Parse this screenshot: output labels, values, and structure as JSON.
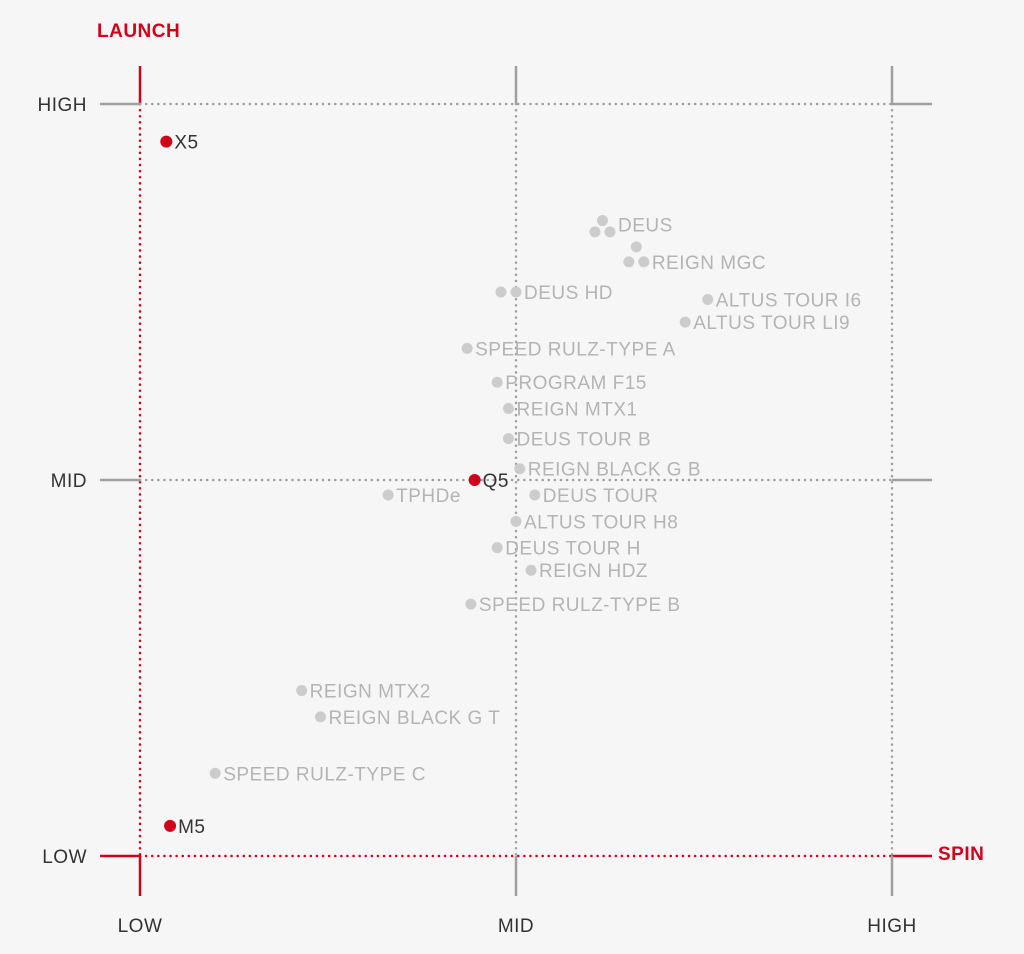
{
  "chart_data": {
    "type": "scatter",
    "title": "",
    "ylabel": "LAUNCH",
    "xlabel": "SPIN",
    "x_ticks": [
      "LOW",
      "MID",
      "HIGH"
    ],
    "y_ticks": [
      "LOW",
      "MID",
      "HIGH"
    ],
    "xlim": [
      0,
      2
    ],
    "ylim": [
      0,
      2
    ],
    "grid": true,
    "colors": {
      "accent": "#d0021b",
      "muted_point": "#cccccc",
      "muted_label": "#b4b4b4",
      "grid": "#a0a0a0",
      "text": "#333333",
      "background": "#f6f6f6"
    },
    "highlighted": [
      {
        "label": "X5",
        "x": 0.07,
        "y": 1.9
      },
      {
        "label": "Q5",
        "x": 0.89,
        "y": 1.0
      },
      {
        "label": "M5",
        "x": 0.08,
        "y": 0.08
      }
    ],
    "points": [
      {
        "label": "DEUS",
        "x": 1.23,
        "y": 1.68,
        "cluster": [
          [
            1.23,
            1.69
          ],
          [
            1.21,
            1.66
          ],
          [
            1.25,
            1.66
          ]
        ]
      },
      {
        "label": "REIGN MGC",
        "x": 1.32,
        "y": 1.58,
        "cluster": [
          [
            1.32,
            1.62
          ],
          [
            1.3,
            1.58
          ],
          [
            1.34,
            1.58
          ]
        ]
      },
      {
        "label": "DEUS HD",
        "x": 0.98,
        "y": 1.5,
        "cluster": [
          [
            0.96,
            1.5
          ],
          [
            1.0,
            1.5
          ]
        ]
      },
      {
        "label": "ALTUS TOUR I6",
        "x": 1.51,
        "y": 1.48
      },
      {
        "label": "ALTUS TOUR LI9",
        "x": 1.45,
        "y": 1.42
      },
      {
        "label": "SPEED RULZ-TYPE A",
        "x": 0.87,
        "y": 1.35
      },
      {
        "label": "PROGRAM F15",
        "x": 0.95,
        "y": 1.26
      },
      {
        "label": "REIGN MTX1",
        "x": 0.98,
        "y": 1.19
      },
      {
        "label": "DEUS TOUR B",
        "x": 0.98,
        "y": 1.11
      },
      {
        "label": "REIGN BLACK G B",
        "x": 1.01,
        "y": 1.03
      },
      {
        "label": "TPHDe",
        "x": 0.66,
        "y": 0.96
      },
      {
        "label": "DEUS TOUR",
        "x": 1.05,
        "y": 0.96
      },
      {
        "label": "ALTUS TOUR H8",
        "x": 1.0,
        "y": 0.89
      },
      {
        "label": "DEUS TOUR H",
        "x": 0.95,
        "y": 0.82
      },
      {
        "label": "REIGN HDZ",
        "x": 1.04,
        "y": 0.76
      },
      {
        "label": "SPEED RULZ-TYPE B",
        "x": 0.88,
        "y": 0.67
      },
      {
        "label": "REIGN MTX2",
        "x": 0.43,
        "y": 0.44
      },
      {
        "label": "REIGN BLACK G T",
        "x": 0.48,
        "y": 0.37
      },
      {
        "label": "SPEED RULZ-TYPE C",
        "x": 0.2,
        "y": 0.22
      }
    ]
  }
}
